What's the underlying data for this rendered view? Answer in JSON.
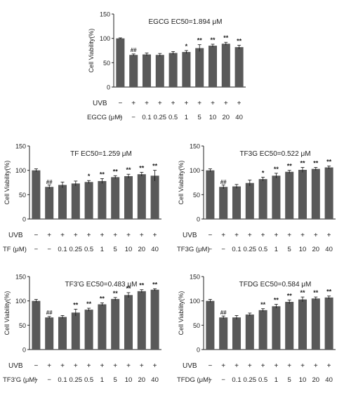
{
  "style": {
    "bar_color": "#595959",
    "axis_color": "#222222",
    "text_color": "#222222"
  },
  "chart_data": [
    {
      "id": "egcg",
      "type": "bar",
      "title": "EGCG  EC50=1.894 μM",
      "ylabel": "Cell Viability(%)",
      "ylim": [
        0,
        150
      ],
      "yticks": [
        "0",
        "50",
        "100",
        "150"
      ],
      "row_labels": [
        "UVB",
        "EGCG (μM)"
      ],
      "uvb": [
        "−",
        "+",
        "+",
        "+",
        "+",
        "+",
        "+",
        "+",
        "+",
        "+"
      ],
      "categories": [
        "−",
        "−",
        "0.1",
        "0.25",
        "0.5",
        "1",
        "5",
        "10",
        "20",
        "40"
      ],
      "values": [
        100,
        66,
        67,
        66,
        70,
        72,
        80,
        85,
        89,
        82
      ],
      "errors": [
        1,
        2,
        3,
        3,
        3,
        3,
        7,
        3,
        3,
        4
      ],
      "annotations": [
        "",
        "##",
        "",
        "",
        "",
        "*",
        "**",
        "**",
        "**",
        "**"
      ]
    },
    {
      "id": "tf",
      "type": "bar",
      "title": "TF  EC50=1.259 μM",
      "ylabel": "Cell Viability(%)",
      "ylim": [
        0,
        150
      ],
      "yticks": [
        "0",
        "50",
        "100",
        "150"
      ],
      "row_labels": [
        "UVB",
        "TF (μM)"
      ],
      "uvb": [
        "−",
        "+",
        "+",
        "+",
        "+",
        "+",
        "+",
        "+",
        "+",
        "+"
      ],
      "categories": [
        "−",
        "−",
        "0.1",
        "0.25",
        "0.5",
        "1",
        "5",
        "10",
        "20",
        "40"
      ],
      "values": [
        100,
        66,
        70,
        73,
        76,
        78,
        86,
        88,
        92,
        89
      ],
      "errors": [
        3,
        4,
        6,
        5,
        3,
        5,
        3,
        4,
        4,
        11
      ],
      "annotations": [
        "",
        "##",
        "",
        "",
        "*",
        "**",
        "**",
        "**",
        "**",
        "**"
      ]
    },
    {
      "id": "tf3g",
      "type": "bar",
      "title": "TF3G  EC50=0.522 μM",
      "ylabel": "Cell Viability(%)",
      "ylim": [
        0,
        150
      ],
      "yticks": [
        "0",
        "50",
        "100",
        "150"
      ],
      "row_labels": [
        "UVB",
        "TF3G (μM)"
      ],
      "uvb": [
        "−",
        "+",
        "+",
        "+",
        "+",
        "+",
        "+",
        "+",
        "+",
        "+"
      ],
      "categories": [
        "−",
        "−",
        "0.1",
        "0.25",
        "0.5",
        "1",
        "5",
        "10",
        "20",
        "40"
      ],
      "values": [
        100,
        66,
        67,
        74,
        82,
        89,
        97,
        101,
        103,
        106
      ],
      "errors": [
        3,
        4,
        4,
        6,
        4,
        5,
        3,
        5,
        3,
        3
      ],
      "annotations": [
        "",
        "##",
        "",
        "",
        "*",
        "**",
        "**",
        "**",
        "**",
        "**"
      ]
    },
    {
      "id": "tf3pg",
      "type": "bar",
      "title": "TF3'G  EC50=0.483 μM",
      "ylabel": "Cell Viability(%)",
      "ylim": [
        0,
        150
      ],
      "yticks": [
        "0",
        "50",
        "100",
        "150"
      ],
      "row_labels": [
        "UVB",
        "TF3'G (μM)"
      ],
      "uvb": [
        "−",
        "+",
        "+",
        "+",
        "+",
        "+",
        "+",
        "+",
        "+",
        "+"
      ],
      "categories": [
        "−",
        "−",
        "0.1",
        "0.25",
        "0.5",
        "1",
        "5",
        "10",
        "20",
        "40"
      ],
      "values": [
        100,
        66,
        67,
        76,
        82,
        93,
        104,
        112,
        120,
        123
      ],
      "errors": [
        3,
        2,
        3,
        7,
        3,
        3,
        3,
        5,
        3,
        2
      ],
      "annotations": [
        "",
        "##",
        "",
        "**",
        "**",
        "**",
        "**",
        "**",
        "**",
        "**"
      ]
    },
    {
      "id": "tfdg",
      "type": "bar",
      "title": "TFDG  EC50=0.584 μM",
      "ylabel": "Cell Viability(%)",
      "ylim": [
        0,
        150
      ],
      "yticks": [
        "0",
        "50",
        "100",
        "150"
      ],
      "row_labels": [
        "UVB",
        "TFDG (μM)"
      ],
      "uvb": [
        "−",
        "+",
        "+",
        "+",
        "+",
        "+",
        "+",
        "+",
        "+",
        "+"
      ],
      "categories": [
        "−",
        "−",
        "0.1",
        "0.25",
        "0.5",
        "1",
        "5",
        "10",
        "20",
        "40"
      ],
      "values": [
        100,
        66,
        66,
        72,
        81,
        89,
        98,
        103,
        105,
        107
      ],
      "errors": [
        3,
        3,
        4,
        3,
        3,
        4,
        4,
        5,
        3,
        3
      ],
      "annotations": [
        "",
        "##",
        "",
        "",
        "**",
        "**",
        "**",
        "**",
        "**",
        "**"
      ]
    }
  ]
}
